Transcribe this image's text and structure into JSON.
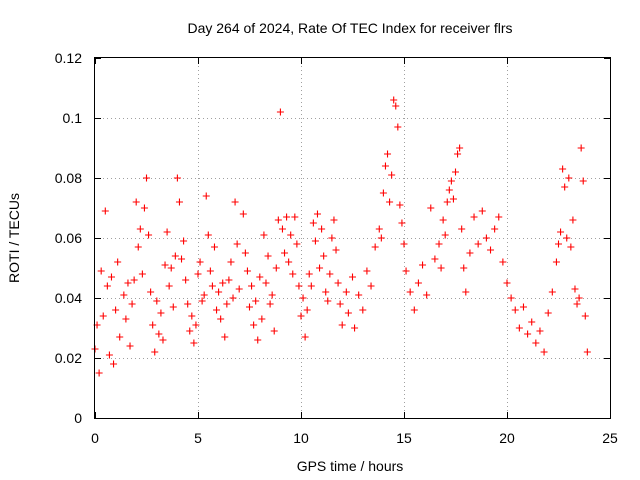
{
  "chart_data": {
    "type": "scatter",
    "title": "Day 264 of 2024, Rate Of TEC Index for receiver flrs",
    "xlabel": "GPS time / hours",
    "ylabel": "ROTI / TECUs",
    "xlim": [
      0,
      25
    ],
    "ylim": [
      0,
      0.12
    ],
    "xticks": [
      0,
      5,
      10,
      15,
      20,
      25
    ],
    "xtick_labels": [
      "0",
      "5",
      "10",
      "15",
      "20",
      "25"
    ],
    "yticks": [
      0,
      0.02,
      0.04,
      0.06,
      0.08,
      0.1,
      0.12
    ],
    "ytick_labels": [
      "0",
      "0.02",
      "0.04",
      "0.06",
      "0.08",
      "0.1",
      "0.12"
    ],
    "grid": true,
    "marker": "plus",
    "series": [
      {
        "name": "ROTI",
        "color": "#ff0000",
        "points": [
          [
            0.0,
            0.023
          ],
          [
            0.1,
            0.031
          ],
          [
            0.2,
            0.015
          ],
          [
            0.3,
            0.049
          ],
          [
            0.4,
            0.034
          ],
          [
            0.5,
            0.069
          ],
          [
            0.6,
            0.044
          ],
          [
            0.7,
            0.021
          ],
          [
            0.8,
            0.047
          ],
          [
            0.9,
            0.018
          ],
          [
            1.0,
            0.036
          ],
          [
            1.1,
            0.052
          ],
          [
            1.2,
            0.027
          ],
          [
            1.4,
            0.041
          ],
          [
            1.5,
            0.033
          ],
          [
            1.6,
            0.045
          ],
          [
            1.7,
            0.024
          ],
          [
            1.8,
            0.038
          ],
          [
            1.9,
            0.046
          ],
          [
            2.0,
            0.072
          ],
          [
            2.1,
            0.057
          ],
          [
            2.2,
            0.063
          ],
          [
            2.3,
            0.048
          ],
          [
            2.4,
            0.07
          ],
          [
            2.5,
            0.08
          ],
          [
            2.6,
            0.061
          ],
          [
            2.7,
            0.042
          ],
          [
            2.8,
            0.031
          ],
          [
            2.9,
            0.022
          ],
          [
            3.0,
            0.039
          ],
          [
            3.1,
            0.028
          ],
          [
            3.2,
            0.035
          ],
          [
            3.3,
            0.026
          ],
          [
            3.4,
            0.051
          ],
          [
            3.5,
            0.062
          ],
          [
            3.6,
            0.044
          ],
          [
            3.7,
            0.05
          ],
          [
            3.8,
            0.037
          ],
          [
            3.9,
            0.054
          ],
          [
            4.0,
            0.08
          ],
          [
            4.1,
            0.072
          ],
          [
            4.2,
            0.053
          ],
          [
            4.3,
            0.059
          ],
          [
            4.4,
            0.046
          ],
          [
            4.5,
            0.038
          ],
          [
            4.6,
            0.029
          ],
          [
            4.7,
            0.034
          ],
          [
            4.8,
            0.025
          ],
          [
            4.9,
            0.031
          ],
          [
            5.0,
            0.048
          ],
          [
            5.1,
            0.052
          ],
          [
            5.2,
            0.039
          ],
          [
            5.3,
            0.041
          ],
          [
            5.4,
            0.074
          ],
          [
            5.5,
            0.061
          ],
          [
            5.6,
            0.049
          ],
          [
            5.7,
            0.044
          ],
          [
            5.8,
            0.057
          ],
          [
            5.9,
            0.036
          ],
          [
            6.0,
            0.042
          ],
          [
            6.1,
            0.033
          ],
          [
            6.2,
            0.045
          ],
          [
            6.3,
            0.027
          ],
          [
            6.4,
            0.038
          ],
          [
            6.5,
            0.046
          ],
          [
            6.6,
            0.052
          ],
          [
            6.7,
            0.04
          ],
          [
            6.8,
            0.072
          ],
          [
            6.9,
            0.058
          ],
          [
            7.0,
            0.043
          ],
          [
            7.2,
            0.068
          ],
          [
            7.3,
            0.055
          ],
          [
            7.4,
            0.049
          ],
          [
            7.5,
            0.037
          ],
          [
            7.6,
            0.044
          ],
          [
            7.7,
            0.031
          ],
          [
            7.8,
            0.039
          ],
          [
            7.9,
            0.026
          ],
          [
            8.0,
            0.047
          ],
          [
            8.1,
            0.033
          ],
          [
            8.2,
            0.061
          ],
          [
            8.3,
            0.045
          ],
          [
            8.4,
            0.054
          ],
          [
            8.5,
            0.038
          ],
          [
            8.6,
            0.041
          ],
          [
            8.7,
            0.029
          ],
          [
            8.8,
            0.05
          ],
          [
            8.9,
            0.066
          ],
          [
            9.0,
            0.102
          ],
          [
            9.1,
            0.063
          ],
          [
            9.2,
            0.055
          ],
          [
            9.3,
            0.067
          ],
          [
            9.4,
            0.052
          ],
          [
            9.5,
            0.061
          ],
          [
            9.6,
            0.048
          ],
          [
            9.7,
            0.067
          ],
          [
            9.8,
            0.058
          ],
          [
            9.9,
            0.044
          ],
          [
            10.0,
            0.034
          ],
          [
            10.1,
            0.04
          ],
          [
            10.2,
            0.027
          ],
          [
            10.3,
            0.036
          ],
          [
            10.4,
            0.048
          ],
          [
            10.5,
            0.044
          ],
          [
            10.6,
            0.065
          ],
          [
            10.7,
            0.059
          ],
          [
            10.8,
            0.068
          ],
          [
            10.9,
            0.05
          ],
          [
            11.0,
            0.063
          ],
          [
            11.1,
            0.054
          ],
          [
            11.2,
            0.042
          ],
          [
            11.3,
            0.039
          ],
          [
            11.4,
            0.048
          ],
          [
            11.5,
            0.06
          ],
          [
            11.6,
            0.066
          ],
          [
            11.7,
            0.056
          ],
          [
            11.8,
            0.045
          ],
          [
            11.9,
            0.038
          ],
          [
            12.0,
            0.031
          ],
          [
            12.2,
            0.042
          ],
          [
            12.3,
            0.035
          ],
          [
            12.5,
            0.047
          ],
          [
            12.6,
            0.03
          ],
          [
            12.8,
            0.041
          ],
          [
            13.0,
            0.036
          ],
          [
            13.2,
            0.049
          ],
          [
            13.4,
            0.044
          ],
          [
            13.6,
            0.057
          ],
          [
            13.8,
            0.063
          ],
          [
            13.9,
            0.06
          ],
          [
            14.0,
            0.075
          ],
          [
            14.1,
            0.084
          ],
          [
            14.2,
            0.088
          ],
          [
            14.3,
            0.072
          ],
          [
            14.4,
            0.081
          ],
          [
            14.5,
            0.106
          ],
          [
            14.6,
            0.104
          ],
          [
            14.7,
            0.097
          ],
          [
            14.8,
            0.071
          ],
          [
            14.9,
            0.065
          ],
          [
            15.0,
            0.058
          ],
          [
            15.1,
            0.049
          ],
          [
            15.3,
            0.042
          ],
          [
            15.5,
            0.036
          ],
          [
            15.7,
            0.045
          ],
          [
            15.9,
            0.051
          ],
          [
            16.1,
            0.041
          ],
          [
            16.3,
            0.07
          ],
          [
            16.5,
            0.053
          ],
          [
            16.7,
            0.058
          ],
          [
            16.8,
            0.05
          ],
          [
            16.9,
            0.066
          ],
          [
            17.0,
            0.061
          ],
          [
            17.1,
            0.072
          ],
          [
            17.2,
            0.076
          ],
          [
            17.3,
            0.079
          ],
          [
            17.4,
            0.073
          ],
          [
            17.5,
            0.082
          ],
          [
            17.6,
            0.088
          ],
          [
            17.7,
            0.09
          ],
          [
            17.8,
            0.063
          ],
          [
            17.9,
            0.05
          ],
          [
            18.0,
            0.042
          ],
          [
            18.2,
            0.055
          ],
          [
            18.4,
            0.067
          ],
          [
            18.6,
            0.058
          ],
          [
            18.8,
            0.069
          ],
          [
            19.0,
            0.06
          ],
          [
            19.2,
            0.056
          ],
          [
            19.4,
            0.063
          ],
          [
            19.6,
            0.067
          ],
          [
            19.8,
            0.052
          ],
          [
            20.0,
            0.045
          ],
          [
            20.2,
            0.04
          ],
          [
            20.4,
            0.036
          ],
          [
            20.6,
            0.03
          ],
          [
            20.8,
            0.037
          ],
          [
            21.0,
            0.028
          ],
          [
            21.2,
            0.032
          ],
          [
            21.4,
            0.025
          ],
          [
            21.6,
            0.029
          ],
          [
            21.8,
            0.022
          ],
          [
            22.0,
            0.035
          ],
          [
            22.2,
            0.042
          ],
          [
            22.4,
            0.052
          ],
          [
            22.5,
            0.058
          ],
          [
            22.6,
            0.062
          ],
          [
            22.7,
            0.083
          ],
          [
            22.8,
            0.077
          ],
          [
            22.9,
            0.06
          ],
          [
            23.0,
            0.08
          ],
          [
            23.1,
            0.057
          ],
          [
            23.2,
            0.066
          ],
          [
            23.3,
            0.043
          ],
          [
            23.4,
            0.038
          ],
          [
            23.5,
            0.04
          ],
          [
            23.6,
            0.09
          ],
          [
            23.7,
            0.079
          ],
          [
            23.8,
            0.034
          ],
          [
            23.9,
            0.022
          ]
        ]
      }
    ]
  }
}
